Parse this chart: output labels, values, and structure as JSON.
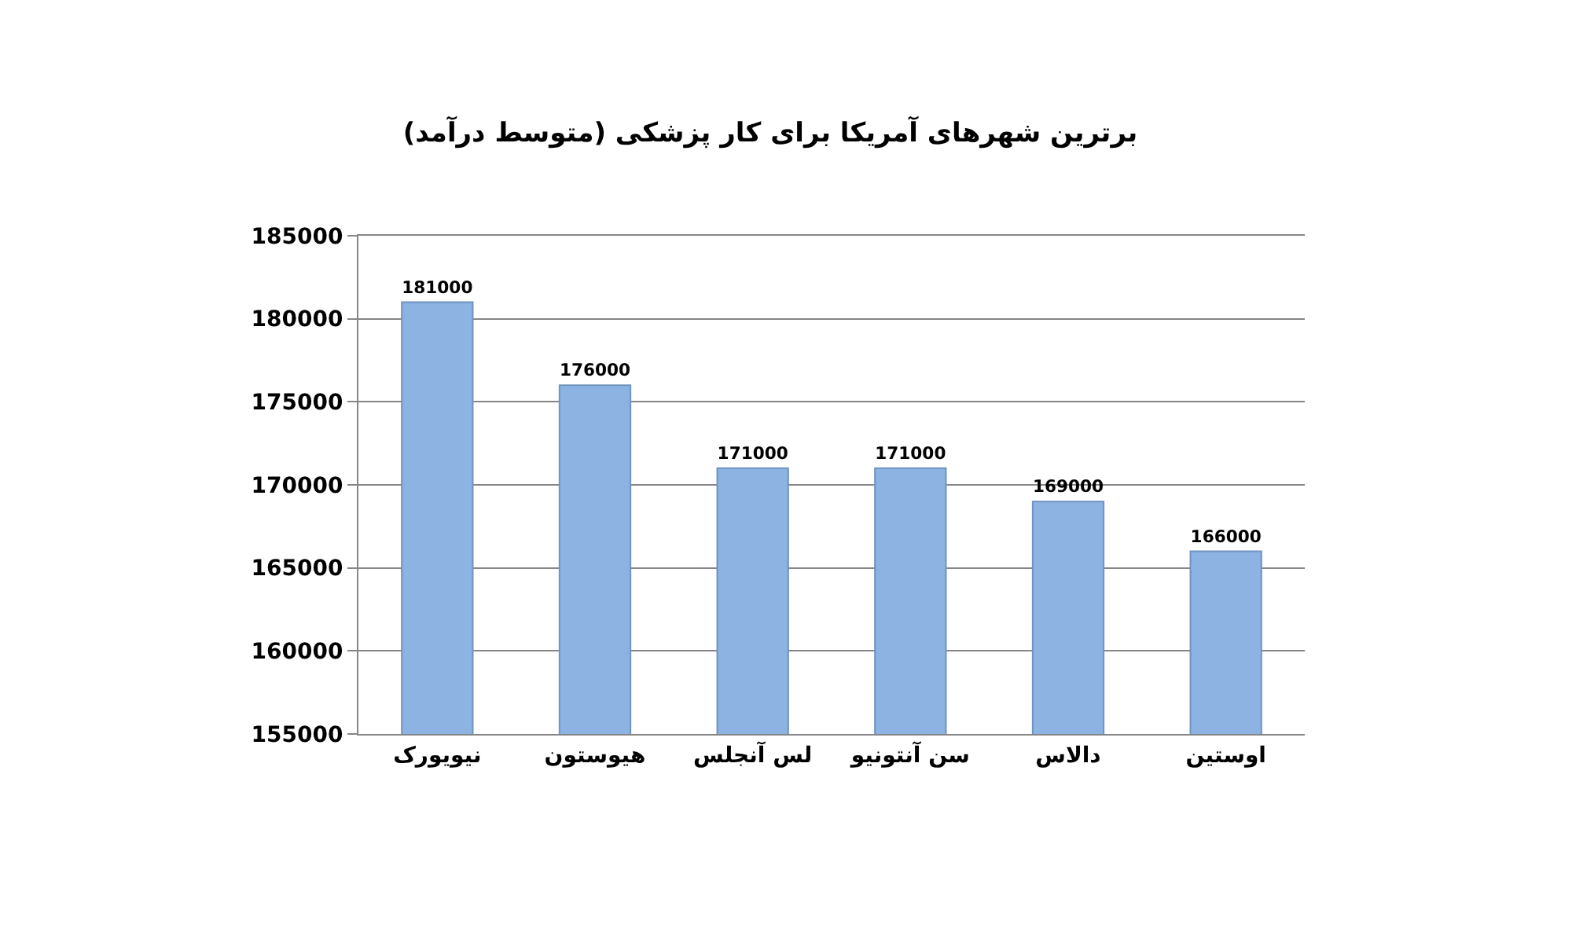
{
  "chart_data": {
    "type": "bar",
    "title": "برترین شهرهای آمریکا برای کار پزشکی (متوسط درآمد)",
    "categories": [
      "نیویورک",
      "هیوستون",
      "لس آنجلس",
      "سن آنتونیو",
      "دالاس",
      "اوستین"
    ],
    "values": [
      181000,
      176000,
      171000,
      171000,
      169000,
      166000
    ],
    "color": "#8db3e2",
    "ylim": [
      155000,
      185000
    ],
    "yticks": [
      155000,
      160000,
      165000,
      170000,
      175000,
      180000,
      185000
    ],
    "grid": "y",
    "data_labels": true
  }
}
